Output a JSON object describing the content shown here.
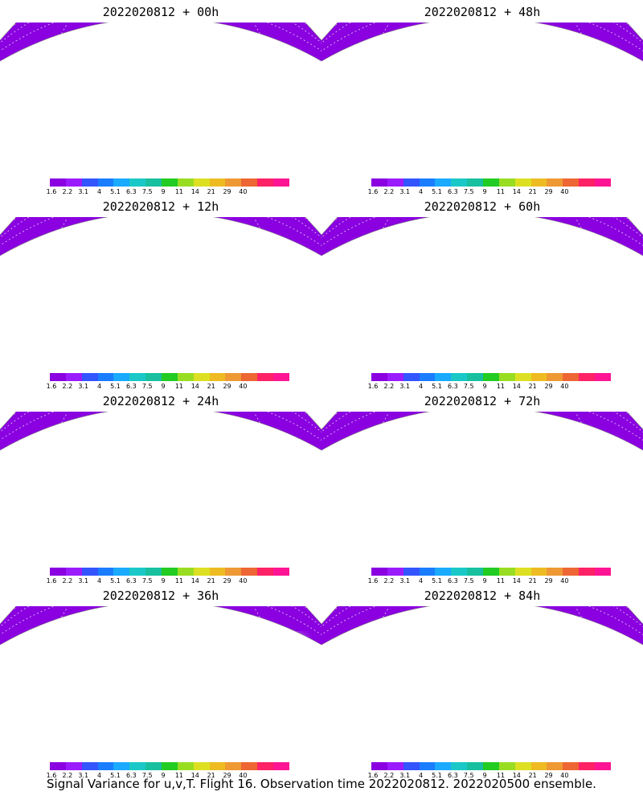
{
  "panels": [
    {
      "title": "2022020812 + 00h",
      "intensity": 0
    },
    {
      "title": "2022020812 + 48h",
      "intensity": 4
    },
    {
      "title": "2022020812 + 12h",
      "intensity": 1
    },
    {
      "title": "2022020812 + 60h",
      "intensity": 5
    },
    {
      "title": "2022020812 + 24h",
      "intensity": 2
    },
    {
      "title": "2022020812 + 72h",
      "intensity": 6
    },
    {
      "title": "2022020812 + 36h",
      "intensity": 3
    },
    {
      "title": "2022020812 + 84h",
      "intensity": 7
    }
  ],
  "colorbar": {
    "labels": [
      "1.6",
      "2.2",
      "3.1",
      "4",
      "5.1",
      "6.3",
      "7.5",
      "9",
      "11",
      "14",
      "21",
      "29",
      "40"
    ],
    "colors": [
      "#8a00e0",
      "#9b1bff",
      "#3355ff",
      "#1a7dff",
      "#1aaaff",
      "#1ac8c8",
      "#18c0a0",
      "#22cc22",
      "#99dd22",
      "#dde022",
      "#eebb22",
      "#ee9933",
      "#ee6633",
      "#ff2266",
      "#ff1493"
    ]
  },
  "caption": "Signal Variance for u,v,T. Flight 16. Observation time 2022020812. 2022020500 ensemble."
}
